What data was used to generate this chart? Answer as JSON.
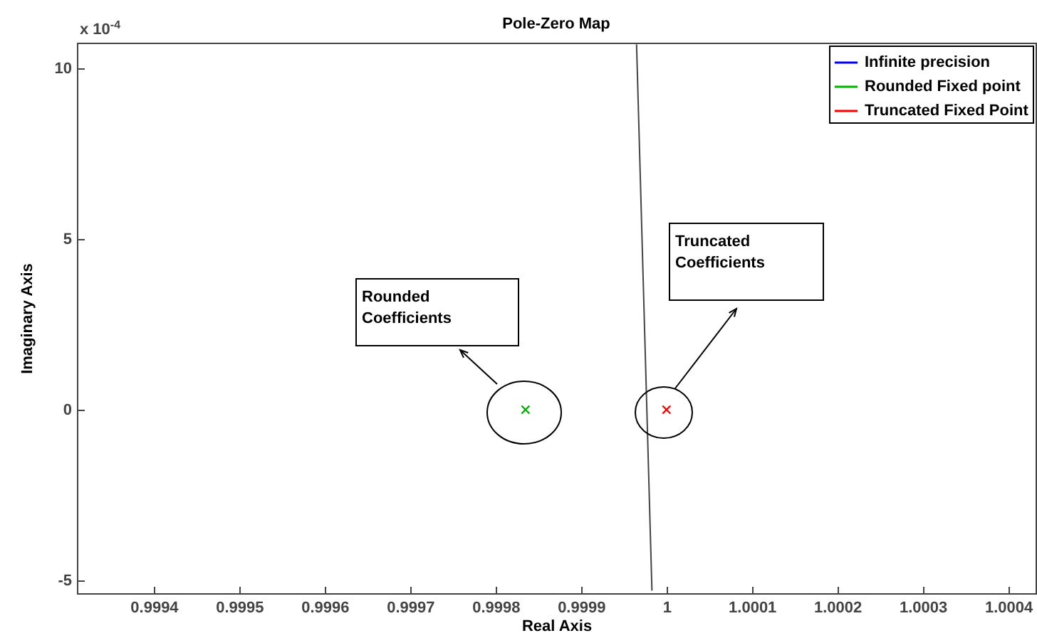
{
  "chart_data": {
    "type": "scatter",
    "title": "Pole-Zero Map",
    "xlabel": "Real Axis",
    "ylabel": "Imaginary Axis",
    "series": [
      {
        "name": "Infinite precision",
        "color": "#0000ff"
      },
      {
        "name": "Rounded Fixed point",
        "color": "#00b000",
        "x": [
          0.999835
        ],
        "values": [
          0
        ]
      },
      {
        "name": "Truncated Fixed Point",
        "color": "#ff0000",
        "x": [
          1
        ],
        "values": [
          0
        ]
      },
      {
        "type": "line",
        "color": "#444444",
        "marker": "none",
        "x": [
          0.999983,
          0.999965
        ],
        "values": [
          -5.3,
          10.7
        ]
      }
    ],
    "marker": "cross",
    "legend": "top right",
    "xlim": [
      0.99931,
      1.000432
    ],
    "xticks": [
      0.9994,
      0.9995,
      0.9996,
      0.9997,
      0.9998,
      0.9999,
      1,
      1.0001,
      1.0002,
      1.0003,
      1.0004
    ],
    "ylim": [
      -5.375,
      10.75
    ],
    "yticks": [
      -5,
      0,
      5,
      10
    ],
    "annotations": [
      "x 10$^{-4}$",
      "Rounded Coefficients",
      "Truncated Coefficients"
    ]
  }
}
